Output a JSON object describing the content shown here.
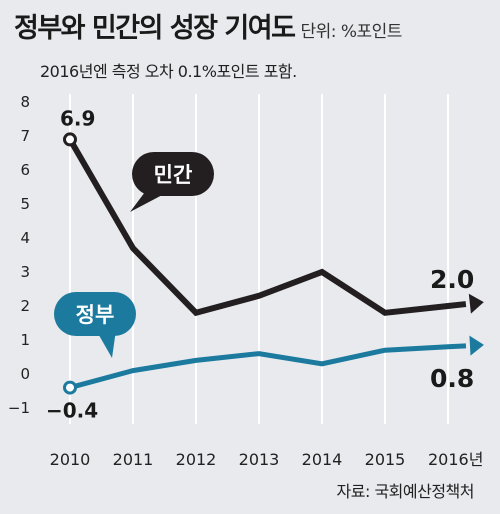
{
  "header": {
    "title": "정부와 민간의 성장 기여도",
    "unit": "단위: %포인트",
    "note": "2016년엔 측정 오차 0.1%포인트 포함."
  },
  "footer": {
    "source": "자료: 국회예산정책처"
  },
  "colors": {
    "private": "#231f20",
    "government": "#1b7a9e",
    "background": "#e8eaee",
    "gridline": "#ffffff"
  },
  "chart_data": {
    "type": "line",
    "title": "정부와 민간의 성장 기여도",
    "ylabel": "단위: %포인트",
    "xlabel": "",
    "x": [
      "2010",
      "2011",
      "2012",
      "2013",
      "2014",
      "2015",
      "2016년"
    ],
    "ylim": [
      -1,
      8
    ],
    "yticks": [
      "8",
      "7",
      "6",
      "5",
      "4",
      "3",
      "2",
      "1",
      "0",
      "−1"
    ],
    "grid": "vertical",
    "series": [
      {
        "name": "민간",
        "values": [
          6.9,
          3.7,
          1.8,
          2.3,
          3.0,
          1.8,
          2.0
        ],
        "labels": {
          "0": "6.9",
          "6": "2.0"
        }
      },
      {
        "name": "정부",
        "values": [
          -0.4,
          0.1,
          0.4,
          0.6,
          0.3,
          0.7,
          0.8
        ],
        "labels": {
          "0": "−0.4",
          "6": "0.8"
        }
      }
    ]
  }
}
